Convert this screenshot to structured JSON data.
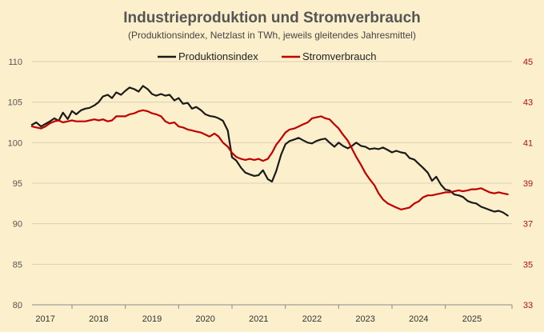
{
  "chart_data": {
    "type": "line",
    "title": "Industrieproduktion und Stromverbrauch",
    "subtitle": "(Produktionsindex, Netzlast in TWh, jeweils gleitendes Jahresmittel)",
    "x_ticks": [
      "2017",
      "2018",
      "2019",
      "2020",
      "2021",
      "2022",
      "2023",
      "2024",
      "2025"
    ],
    "x_range": [
      2016.75,
      2025.75
    ],
    "y_left": {
      "ticks": [
        80,
        85,
        90,
        95,
        100,
        105,
        110
      ],
      "range": [
        80,
        110
      ]
    },
    "y_right": {
      "ticks": [
        33,
        35,
        37,
        39,
        41,
        43,
        45
      ],
      "range": [
        33,
        45
      ]
    },
    "series": [
      {
        "name": "Produktionsindex",
        "axis": "left",
        "color": "#1a1a1a",
        "points": [
          [
            2016.75,
            102.2
          ],
          [
            2016.83,
            102.5
          ],
          [
            2016.92,
            102.0
          ],
          [
            2017.0,
            102.3
          ],
          [
            2017.08,
            102.6
          ],
          [
            2017.17,
            103.0
          ],
          [
            2017.25,
            102.7
          ],
          [
            2017.33,
            103.7
          ],
          [
            2017.42,
            102.9
          ],
          [
            2017.5,
            103.9
          ],
          [
            2017.58,
            103.5
          ],
          [
            2017.67,
            104.0
          ],
          [
            2017.75,
            104.2
          ],
          [
            2017.83,
            104.3
          ],
          [
            2017.92,
            104.6
          ],
          [
            2018.0,
            105.0
          ],
          [
            2018.08,
            105.7
          ],
          [
            2018.17,
            105.9
          ],
          [
            2018.25,
            105.5
          ],
          [
            2018.33,
            106.2
          ],
          [
            2018.42,
            105.9
          ],
          [
            2018.5,
            106.4
          ],
          [
            2018.58,
            106.8
          ],
          [
            2018.67,
            106.6
          ],
          [
            2018.75,
            106.3
          ],
          [
            2018.83,
            107.0
          ],
          [
            2018.92,
            106.6
          ],
          [
            2019.0,
            106.0
          ],
          [
            2019.08,
            105.8
          ],
          [
            2019.17,
            106.0
          ],
          [
            2019.25,
            105.8
          ],
          [
            2019.33,
            105.9
          ],
          [
            2019.42,
            105.2
          ],
          [
            2019.5,
            105.5
          ],
          [
            2019.58,
            104.8
          ],
          [
            2019.67,
            104.9
          ],
          [
            2019.75,
            104.2
          ],
          [
            2019.83,
            104.4
          ],
          [
            2019.92,
            104.0
          ],
          [
            2020.0,
            103.5
          ],
          [
            2020.08,
            103.3
          ],
          [
            2020.17,
            103.2
          ],
          [
            2020.25,
            103.0
          ],
          [
            2020.33,
            102.7
          ],
          [
            2020.42,
            101.5
          ],
          [
            2020.5,
            98.2
          ],
          [
            2020.58,
            97.8
          ],
          [
            2020.67,
            96.9
          ],
          [
            2020.75,
            96.3
          ],
          [
            2020.83,
            96.1
          ],
          [
            2020.92,
            95.9
          ],
          [
            2021.0,
            96.0
          ],
          [
            2021.08,
            96.6
          ],
          [
            2021.17,
            95.5
          ],
          [
            2021.25,
            95.2
          ],
          [
            2021.33,
            96.5
          ],
          [
            2021.42,
            98.5
          ],
          [
            2021.5,
            99.8
          ],
          [
            2021.58,
            100.2
          ],
          [
            2021.67,
            100.4
          ],
          [
            2021.75,
            100.6
          ],
          [
            2021.83,
            100.3
          ],
          [
            2021.92,
            100.0
          ],
          [
            2022.0,
            99.9
          ],
          [
            2022.08,
            100.2
          ],
          [
            2022.17,
            100.4
          ],
          [
            2022.25,
            100.5
          ],
          [
            2022.33,
            100.0
          ],
          [
            2022.42,
            99.5
          ],
          [
            2022.5,
            100.0
          ],
          [
            2022.58,
            99.6
          ],
          [
            2022.67,
            99.3
          ],
          [
            2022.75,
            99.6
          ],
          [
            2022.83,
            100.0
          ],
          [
            2022.92,
            99.6
          ],
          [
            2023.0,
            99.5
          ],
          [
            2023.08,
            99.2
          ],
          [
            2023.17,
            99.3
          ],
          [
            2023.25,
            99.2
          ],
          [
            2023.33,
            99.4
          ],
          [
            2023.42,
            99.1
          ],
          [
            2023.5,
            98.8
          ],
          [
            2023.58,
            99.0
          ],
          [
            2023.67,
            98.8
          ],
          [
            2023.75,
            98.7
          ],
          [
            2023.83,
            98.1
          ],
          [
            2023.92,
            97.9
          ],
          [
            2024.0,
            97.4
          ],
          [
            2024.08,
            96.9
          ],
          [
            2024.17,
            96.3
          ],
          [
            2024.25,
            95.3
          ],
          [
            2024.33,
            95.8
          ],
          [
            2024.42,
            94.8
          ],
          [
            2024.5,
            94.2
          ],
          [
            2024.58,
            94.1
          ],
          [
            2024.67,
            93.6
          ],
          [
            2024.75,
            93.5
          ],
          [
            2024.83,
            93.3
          ],
          [
            2024.92,
            92.8
          ],
          [
            2025.0,
            92.6
          ],
          [
            2025.08,
            92.5
          ],
          [
            2025.17,
            92.1
          ],
          [
            2025.25,
            91.9
          ],
          [
            2025.33,
            91.7
          ],
          [
            2025.42,
            91.5
          ],
          [
            2025.5,
            91.6
          ],
          [
            2025.58,
            91.4
          ],
          [
            2025.67,
            91.0
          ]
        ]
      },
      {
        "name": "Stromverbrauch",
        "axis": "right",
        "color": "#c00000",
        "points": [
          [
            2016.75,
            41.8
          ],
          [
            2016.83,
            41.75
          ],
          [
            2016.92,
            41.7
          ],
          [
            2017.0,
            41.8
          ],
          [
            2017.08,
            41.95
          ],
          [
            2017.17,
            42.05
          ],
          [
            2017.25,
            42.1
          ],
          [
            2017.33,
            42.0
          ],
          [
            2017.42,
            42.05
          ],
          [
            2017.5,
            42.1
          ],
          [
            2017.58,
            42.05
          ],
          [
            2017.67,
            42.05
          ],
          [
            2017.75,
            42.05
          ],
          [
            2017.83,
            42.1
          ],
          [
            2017.92,
            42.15
          ],
          [
            2018.0,
            42.1
          ],
          [
            2018.08,
            42.15
          ],
          [
            2018.17,
            42.05
          ],
          [
            2018.25,
            42.1
          ],
          [
            2018.33,
            42.3
          ],
          [
            2018.42,
            42.3
          ],
          [
            2018.5,
            42.3
          ],
          [
            2018.58,
            42.4
          ],
          [
            2018.67,
            42.45
          ],
          [
            2018.75,
            42.55
          ],
          [
            2018.83,
            42.6
          ],
          [
            2018.92,
            42.55
          ],
          [
            2019.0,
            42.45
          ],
          [
            2019.08,
            42.4
          ],
          [
            2019.17,
            42.3
          ],
          [
            2019.25,
            42.05
          ],
          [
            2019.33,
            41.95
          ],
          [
            2019.42,
            42.0
          ],
          [
            2019.5,
            41.8
          ],
          [
            2019.58,
            41.75
          ],
          [
            2019.67,
            41.65
          ],
          [
            2019.75,
            41.6
          ],
          [
            2019.83,
            41.55
          ],
          [
            2019.92,
            41.5
          ],
          [
            2020.0,
            41.4
          ],
          [
            2020.08,
            41.3
          ],
          [
            2020.17,
            41.45
          ],
          [
            2020.25,
            41.3
          ],
          [
            2020.33,
            41.0
          ],
          [
            2020.42,
            40.8
          ],
          [
            2020.5,
            40.5
          ],
          [
            2020.58,
            40.3
          ],
          [
            2020.67,
            40.2
          ],
          [
            2020.75,
            40.15
          ],
          [
            2020.83,
            40.2
          ],
          [
            2020.92,
            40.15
          ],
          [
            2021.0,
            40.2
          ],
          [
            2021.08,
            40.1
          ],
          [
            2021.17,
            40.2
          ],
          [
            2021.25,
            40.5
          ],
          [
            2021.33,
            40.9
          ],
          [
            2021.42,
            41.2
          ],
          [
            2021.5,
            41.5
          ],
          [
            2021.58,
            41.65
          ],
          [
            2021.67,
            41.7
          ],
          [
            2021.75,
            41.8
          ],
          [
            2021.83,
            41.9
          ],
          [
            2021.92,
            42.0
          ],
          [
            2022.0,
            42.2
          ],
          [
            2022.08,
            42.25
          ],
          [
            2022.17,
            42.3
          ],
          [
            2022.25,
            42.2
          ],
          [
            2022.33,
            42.15
          ],
          [
            2022.42,
            41.9
          ],
          [
            2022.5,
            41.7
          ],
          [
            2022.58,
            41.4
          ],
          [
            2022.67,
            41.1
          ],
          [
            2022.75,
            40.7
          ],
          [
            2022.83,
            40.3
          ],
          [
            2022.92,
            39.9
          ],
          [
            2023.0,
            39.5
          ],
          [
            2023.08,
            39.2
          ],
          [
            2023.17,
            38.9
          ],
          [
            2023.25,
            38.5
          ],
          [
            2023.33,
            38.2
          ],
          [
            2023.42,
            38.0
          ],
          [
            2023.5,
            37.9
          ],
          [
            2023.58,
            37.8
          ],
          [
            2023.67,
            37.7
          ],
          [
            2023.75,
            37.75
          ],
          [
            2023.83,
            37.8
          ],
          [
            2023.92,
            38.0
          ],
          [
            2024.0,
            38.1
          ],
          [
            2024.08,
            38.3
          ],
          [
            2024.17,
            38.4
          ],
          [
            2024.25,
            38.4
          ],
          [
            2024.33,
            38.45
          ],
          [
            2024.42,
            38.5
          ],
          [
            2024.5,
            38.55
          ],
          [
            2024.58,
            38.55
          ],
          [
            2024.67,
            38.6
          ],
          [
            2024.75,
            38.65
          ],
          [
            2024.83,
            38.6
          ],
          [
            2024.92,
            38.65
          ],
          [
            2025.0,
            38.7
          ],
          [
            2025.08,
            38.7
          ],
          [
            2025.17,
            38.75
          ],
          [
            2025.25,
            38.65
          ],
          [
            2025.33,
            38.55
          ],
          [
            2025.42,
            38.5
          ],
          [
            2025.5,
            38.55
          ],
          [
            2025.58,
            38.5
          ],
          [
            2025.67,
            38.45
          ]
        ]
      }
    ],
    "legend_position": "top-center",
    "grid": true
  }
}
